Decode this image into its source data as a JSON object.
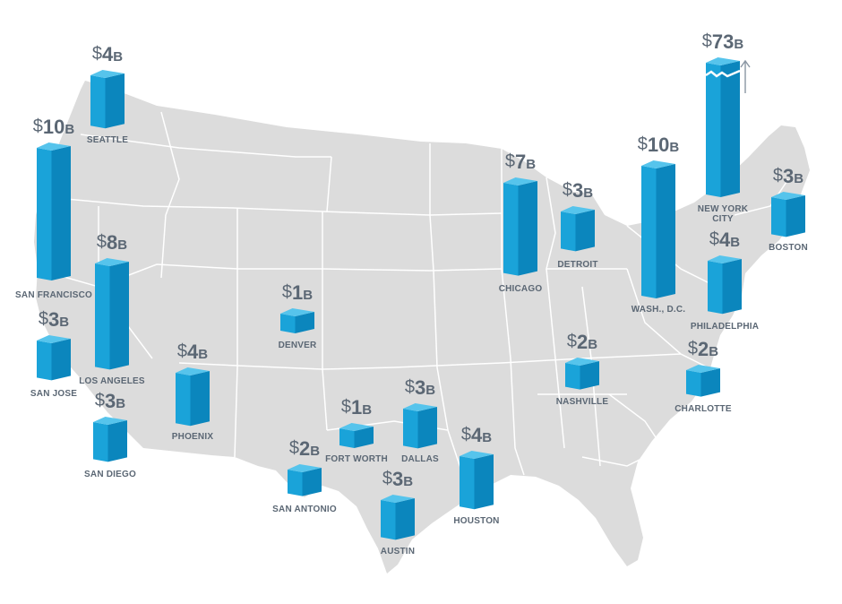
{
  "colors": {
    "land": "#dcdcdc",
    "border": "#ffffff",
    "bar_front": "#1aa3d9",
    "bar_side": "#0b86bd",
    "bar_top": "#56c4ec",
    "label": "#5b6774"
  },
  "currency_symbol": "$",
  "unit": "B",
  "cities": [
    {
      "id": "seattle",
      "name": "SEATTLE",
      "value": 4
    },
    {
      "id": "san-francisco",
      "name": "SAN FRANCISCO",
      "value": 10
    },
    {
      "id": "san-jose",
      "name": "SAN JOSE",
      "value": 3
    },
    {
      "id": "los-angeles",
      "name": "LOS ANGELES",
      "value": 8
    },
    {
      "id": "san-diego",
      "name": "SAN DIEGO",
      "value": 3
    },
    {
      "id": "phoenix",
      "name": "PHOENIX",
      "value": 4
    },
    {
      "id": "denver",
      "name": "DENVER",
      "value": 1
    },
    {
      "id": "san-antonio",
      "name": "SAN ANTONIO",
      "value": 2
    },
    {
      "id": "fort-worth",
      "name": "FORT WORTH",
      "value": 1
    },
    {
      "id": "dallas",
      "name": "DALLAS",
      "value": 3
    },
    {
      "id": "austin",
      "name": "AUSTIN",
      "value": 3
    },
    {
      "id": "houston",
      "name": "HOUSTON",
      "value": 4
    },
    {
      "id": "chicago",
      "name": "CHICAGO",
      "value": 7
    },
    {
      "id": "detroit",
      "name": "DETROIT",
      "value": 3
    },
    {
      "id": "nashville",
      "name": "NASHVILLE",
      "value": 2
    },
    {
      "id": "charlotte",
      "name": "CHARLOTTE",
      "value": 2
    },
    {
      "id": "washington-dc",
      "name": "WASH., D.C.",
      "value": 10
    },
    {
      "id": "philadelphia",
      "name": "PHILADELPHIA",
      "value": 4
    },
    {
      "id": "new-york-city",
      "name": "NEW YORK CITY",
      "value": 73,
      "truncated": true
    },
    {
      "id": "boston",
      "name": "BOSTON",
      "value": 3
    }
  ]
}
